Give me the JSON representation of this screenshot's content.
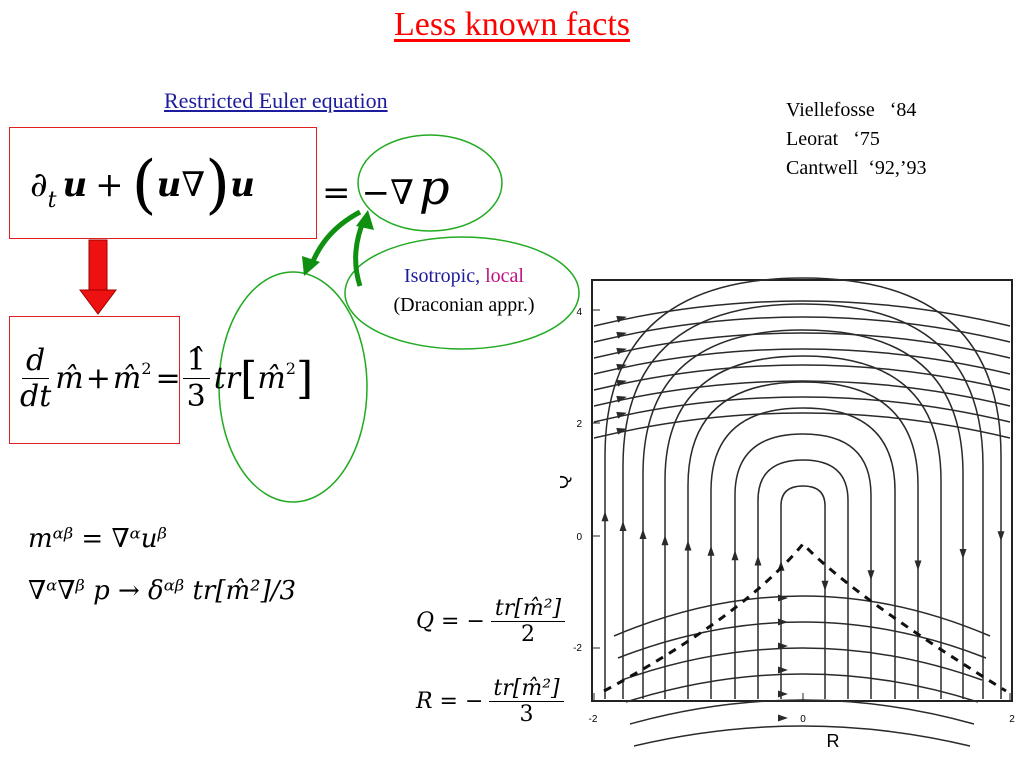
{
  "slide": {
    "title": "Less known facts",
    "subtitle": "Restricted Euler equation",
    "references": [
      "Viellefosse   ‘84",
      "Leorat   ‘75",
      "Cantwell  ‘92,’93"
    ],
    "bubble": {
      "isotropic": "Isotropic,",
      "local": "local",
      "note": "(Draconian appr.)"
    }
  },
  "equations": {
    "euler": {
      "lhs_dt": "∂",
      "lhs_t": "t",
      "u": "u",
      "plus": "+",
      "nabla": "∇",
      "equals": "=",
      "minus_nabla": "−∇",
      "p": "p"
    },
    "restricted": {
      "d": "d",
      "dt": "dt",
      "m": "m̂",
      "plus": "+",
      "m2": "m̂",
      "sq": "2",
      "equals": "=",
      "one": "1̂",
      "three": "3",
      "tr": "tr"
    },
    "defs": {
      "line1": "mᵅᵝ = ∇ᵅuᵝ",
      "line2": "∇ᵅ∇ᵝ p → δᵅᵝ tr[m̂²]/3"
    },
    "invariants": {
      "Q_lhs": "Q = −",
      "Q_num": "tr[m̂²]",
      "Q_den": "2",
      "R_lhs": "R = −",
      "R_num": "tr[m̂²]",
      "R_den": "3"
    }
  },
  "plot": {
    "xlabel": "R",
    "ylabel": "Q",
    "x_ticks": [
      "-2",
      "0",
      "2"
    ],
    "y_ticks": [
      "4",
      "2",
      "0",
      "-2"
    ],
    "xlim": [
      -2,
      2
    ],
    "ylim": [
      -3,
      4.5
    ]
  },
  "colors": {
    "title": "#ff0000",
    "subtitle": "#1c1c9c",
    "box_border": "#e02020",
    "ellipse": "#22aa22",
    "arrow_green": "#109010",
    "arrow_red": "#ee1111"
  }
}
